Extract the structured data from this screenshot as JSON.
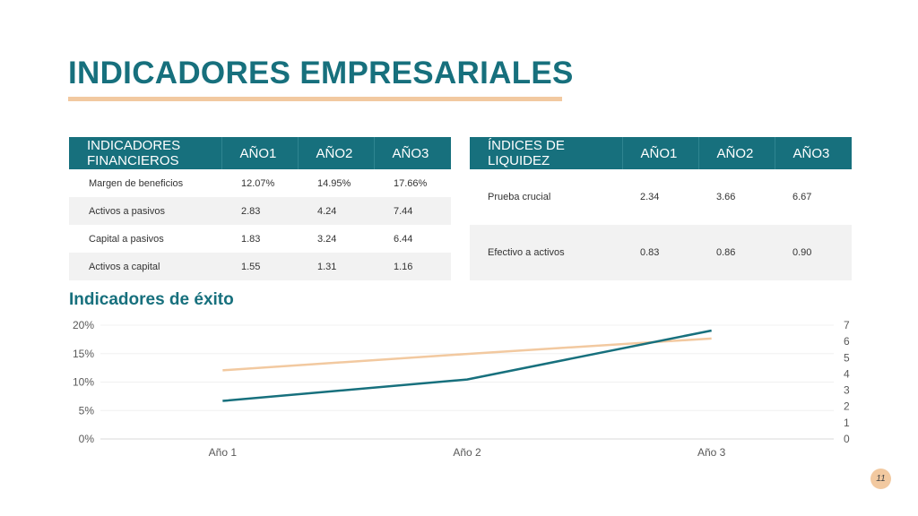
{
  "title": "INDICADORES EMPRESARIALES",
  "financial_table": {
    "headers": [
      "INDICADORES FINANCIEROS",
      "AÑO1",
      "AÑO2",
      "AÑO3"
    ],
    "rows": [
      [
        "Margen de beneficios",
        "12.07%",
        "14.95%",
        "17.66%"
      ],
      [
        "Activos a pasivos",
        "2.83",
        "4.24",
        "7.44"
      ],
      [
        "Capital a pasivos",
        "1.83",
        "3.24",
        "6.44"
      ],
      [
        "Activos a capital",
        "1.55",
        "1.31",
        "1.16"
      ]
    ]
  },
  "liquidity_table": {
    "headers": [
      "ÍNDICES DE LIQUIDEZ",
      "AÑO1",
      "AÑO2",
      "AÑO3"
    ],
    "rows": [
      [
        "Prueba crucial",
        "2.34",
        "3.66",
        "6.67"
      ],
      [
        "Efectivo a activos",
        "0.83",
        "0.86",
        "0.90"
      ]
    ]
  },
  "chart_title": "Indicadores de éxito",
  "colors": {
    "teal": "#17707d",
    "peach": "#f2c9a0"
  },
  "chart_data": {
    "type": "line",
    "categories": [
      "Año 1",
      "Año 2",
      "Año 3"
    ],
    "y_left": {
      "ylim": [
        0,
        20
      ],
      "ticks": [
        0,
        5,
        10,
        15,
        20
      ],
      "tick_labels": [
        "0%",
        "5%",
        "10%",
        "15%",
        "20%"
      ]
    },
    "y_right": {
      "ylim": [
        0,
        7
      ],
      "ticks": [
        0,
        1,
        2,
        3,
        4,
        5,
        6,
        7
      ],
      "tick_labels": [
        "0",
        "1",
        "2",
        "3",
        "4",
        "5",
        "6",
        "7"
      ]
    },
    "series": [
      {
        "axis": "left",
        "color": "#f2c9a0",
        "values": [
          12.07,
          14.95,
          17.66
        ]
      },
      {
        "axis": "right",
        "color": "#17707d",
        "values": [
          2.34,
          3.66,
          6.67
        ]
      }
    ],
    "grid": true,
    "legend": "none"
  },
  "page_number": "11"
}
